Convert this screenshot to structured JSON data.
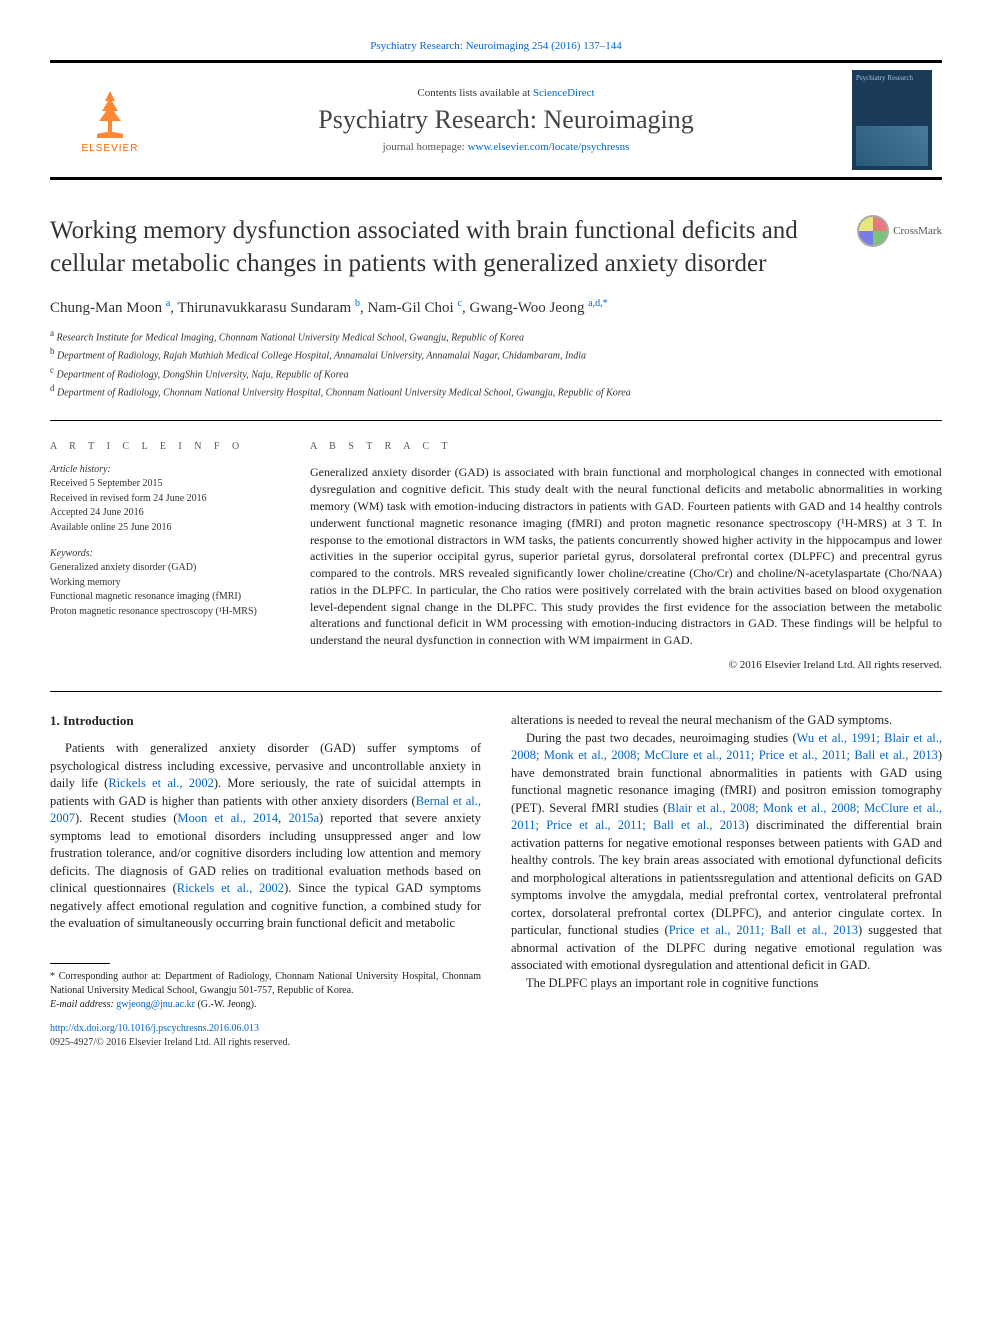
{
  "top_citation": "Psychiatry Research: Neuroimaging 254 (2016) 137–144",
  "header": {
    "contents_prefix": "Contents lists available at ",
    "contents_link": "ScienceDirect",
    "journal_name": "Psychiatry Research: Neuroimaging",
    "homepage_prefix": "journal homepage: ",
    "homepage_link": "www.elsevier.com/locate/psychresns",
    "publisher_logo_text": "ELSEVIER"
  },
  "title": "Working memory dysfunction associated with brain functional deficits and cellular metabolic changes in patients with generalized anxiety disorder",
  "crossmark_label": "CrossMark",
  "authors_html": "Chung-Man Moon <sup>a</sup>, Thirunavukkarasu Sundaram <sup>b</sup>, Nam-Gil Choi <sup>c</sup>, Gwang-Woo Jeong <sup>a,d,*</sup>",
  "affiliations": {
    "a": "Research Institute for Medical Imaging, Chonnam National University Medical School, Gwangju, Republic of Korea",
    "b": "Department of Radiology, Rajah Muthiah Medical College Hospital, Annamalai University, Annamalai Nagar, Chidambaram, India",
    "c": "Department of Radiology, DongShin University, Naju, Republic of Korea",
    "d": "Department of Radiology, Chonnam National University Hospital, Chonnam Natioanl University Medical School, Gwangju, Republic of Korea"
  },
  "article_info": {
    "heading": "A R T I C L E  I N F O",
    "history_label": "Article history:",
    "received": "Received 5 September 2015",
    "revised": "Received in revised form 24 June 2016",
    "accepted": "Accepted 24 June 2016",
    "online": "Available online 25 June 2016",
    "keywords_label": "Keywords:",
    "keywords": [
      "Generalized anxiety disorder (GAD)",
      "Working memory",
      "Functional magnetic resonance imaging (fMRI)",
      "Proton magnetic resonance spectroscopy (¹H-MRS)"
    ]
  },
  "abstract": {
    "heading": "A B S T R A C T",
    "text": "Generalized anxiety disorder (GAD) is associated with brain functional and morphological changes in connected with emotional dysregulation and cognitive deficit. This study dealt with the neural functional deficits and metabolic abnormalities in working memory (WM) task with emotion-inducing distractors in patients with GAD. Fourteen patients with GAD and 14 healthy controls underwent functional magnetic resonance imaging (fMRI) and proton magnetic resonance spectroscopy (¹H-MRS) at 3 T. In response to the emotional distractors in WM tasks, the patients concurrently showed higher activity in the hippocampus and lower activities in the superior occipital gyrus, superior parietal gyrus, dorsolateral prefrontal cortex (DLPFC) and precentral gyrus compared to the controls. MRS revealed significantly lower choline/creatine (Cho/Cr) and choline/N-acetylaspartate (Cho/NAA) ratios in the DLPFC. In particular, the Cho ratios were positively correlated with the brain activities based on blood oxygenation level-dependent signal change in the DLPFC. This study provides the first evidence for the association between the metabolic alterations and functional deficit in WM processing with emotion-inducing distractors in GAD. These findings will be helpful to understand the neural dysfunction in connection with WM impairment in GAD.",
    "copyright": "© 2016 Elsevier Ireland Ltd. All rights reserved."
  },
  "body": {
    "section_number": "1.",
    "section_title": "Introduction",
    "col1_p1_pre": "Patients with generalized anxiety disorder (GAD) suffer symptoms of psychological distress including excessive, pervasive and uncontrollable anxiety in daily life (",
    "col1_p1_link1": "Rickels et al., 2002",
    "col1_p1_mid1": "). More seriously, the rate of suicidal attempts in patients with GAD is higher than patients with other anxiety disorders (",
    "col1_p1_link2": "Bernal et al., 2007",
    "col1_p1_mid2": "). Recent studies (",
    "col1_p1_link3": "Moon et al., 2014",
    "col1_p1_mid3": ", ",
    "col1_p1_link4": "2015a",
    "col1_p1_mid4": ") reported that severe anxiety symptoms lead to emotional disorders including unsuppressed anger and low frustration tolerance, and/or cognitive disorders including low attention and memory deficits. The diagnosis of GAD relies on traditional evaluation methods based on clinical questionnaires (",
    "col1_p1_link5": "Rickels et al., 2002",
    "col1_p1_end": "). Since the typical GAD symptoms negatively affect emotional regulation and cognitive function, a combined study for the evaluation of simultaneously occurring brain functional deficit and metabolic",
    "col2_p1": "alterations is needed to reveal the neural mechanism of the GAD symptoms.",
    "col2_p2_pre": "During the past two decades, neuroimaging studies (",
    "col2_p2_links": "Wu et al., 1991; Blair et al., 2008; Monk et al., 2008; McClure et al., 2011; Price et al., 2011; Ball et al., 2013",
    "col2_p2_mid1": ") have demonstrated brain functional abnormalities in patients with GAD using functional magnetic resonance imaging (fMRI) and positron emission tomography (PET). Several fMRI studies (",
    "col2_p2_links2": "Blair et al., 2008; Monk et al., 2008; McClure et al., 2011; Price et al., 2011; Ball et al., 2013",
    "col2_p2_mid2": ") discriminated the differential brain activation patterns for negative emotional responses between patients with GAD and healthy controls. The key brain areas associated with emotional dyfunctional deficits and morphological alterations in patientssregulation and attentional deficits on GAD symptoms involve the amygdala, medial prefrontal cortex, ventrolateral prefrontal cortex, dorsolateral prefrontal cortex (DLPFC), and anterior cingulate cortex. In particular, functional studies (",
    "col2_p2_links3": "Price et al., 2011; Ball et al., 2013",
    "col2_p2_end": ") suggested that abnormal activation of the DLPFC during negative emotional regulation was associated with emotional dysregulation and attentional deficit in GAD.",
    "col2_p3": "The DLPFC plays an important role in cognitive functions"
  },
  "footnote": {
    "corr_label": "* Corresponding author at: Department of Radiology, Chonnam National University Hospital, Chonnam National University Medical School, Gwangju 501-757, Republic of Korea.",
    "email_label": "E-mail address: ",
    "email": "gwjeong@jnu.ac.kr",
    "email_suffix": " (G.-W. Jeong).",
    "doi": "http://dx.doi.org/10.1016/j.pscychresns.2016.06.013",
    "issn": "0925-4927/© 2016 Elsevier Ireland Ltd. All rights reserved."
  },
  "colors": {
    "link": "#0066cc",
    "logo_orange": "#ff6600",
    "cover_bg": "#1a3a5a"
  }
}
